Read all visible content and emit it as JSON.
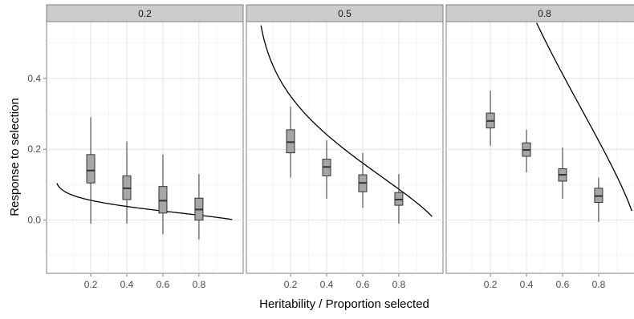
{
  "chart_data": {
    "type": "boxplot",
    "xlabel": "Heritability / Proportion selected",
    "ylabel": "Response to selection",
    "x_ticks": [
      "0.2",
      "0.4",
      "0.6",
      "0.8"
    ],
    "y_ticks": [
      "0.0",
      "0.2",
      "0.4"
    ],
    "xlim": [
      0,
      1
    ],
    "ylim": [
      -0.15,
      0.56
    ],
    "grid": true,
    "facets": [
      {
        "label": "0.2",
        "heritability": 0.2,
        "boxes": [
          {
            "x": 0.2,
            "min": -0.01,
            "q1": 0.105,
            "median": 0.14,
            "q3": 0.185,
            "max": 0.29
          },
          {
            "x": 0.4,
            "min": -0.01,
            "q1": 0.058,
            "median": 0.09,
            "q3": 0.125,
            "max": 0.222
          },
          {
            "x": 0.6,
            "min": -0.04,
            "q1": 0.02,
            "median": 0.055,
            "q3": 0.095,
            "max": 0.185
          },
          {
            "x": 0.8,
            "min": -0.055,
            "q1": 0.0,
            "median": 0.03,
            "q3": 0.062,
            "max": 0.13
          }
        ]
      },
      {
        "label": "0.5",
        "heritability": 0.5,
        "boxes": [
          {
            "x": 0.2,
            "min": 0.12,
            "q1": 0.19,
            "median": 0.22,
            "q3": 0.255,
            "max": 0.32
          },
          {
            "x": 0.4,
            "min": 0.06,
            "q1": 0.125,
            "median": 0.15,
            "q3": 0.172,
            "max": 0.225
          },
          {
            "x": 0.6,
            "min": 0.035,
            "q1": 0.08,
            "median": 0.105,
            "q3": 0.128,
            "max": 0.19
          },
          {
            "x": 0.8,
            "min": -0.01,
            "q1": 0.042,
            "median": 0.058,
            "q3": 0.078,
            "max": 0.13
          }
        ]
      },
      {
        "label": "0.8",
        "heritability": 0.8,
        "boxes": [
          {
            "x": 0.2,
            "min": 0.21,
            "q1": 0.26,
            "median": 0.28,
            "q3": 0.302,
            "max": 0.365
          },
          {
            "x": 0.4,
            "min": 0.135,
            "q1": 0.18,
            "median": 0.198,
            "q3": 0.218,
            "max": 0.255
          },
          {
            "x": 0.6,
            "min": 0.06,
            "q1": 0.11,
            "median": 0.128,
            "q3": 0.145,
            "max": 0.205
          },
          {
            "x": 0.8,
            "min": -0.005,
            "q1": 0.05,
            "median": 0.068,
            "q3": 0.09,
            "max": 0.12
          }
        ]
      }
    ]
  }
}
